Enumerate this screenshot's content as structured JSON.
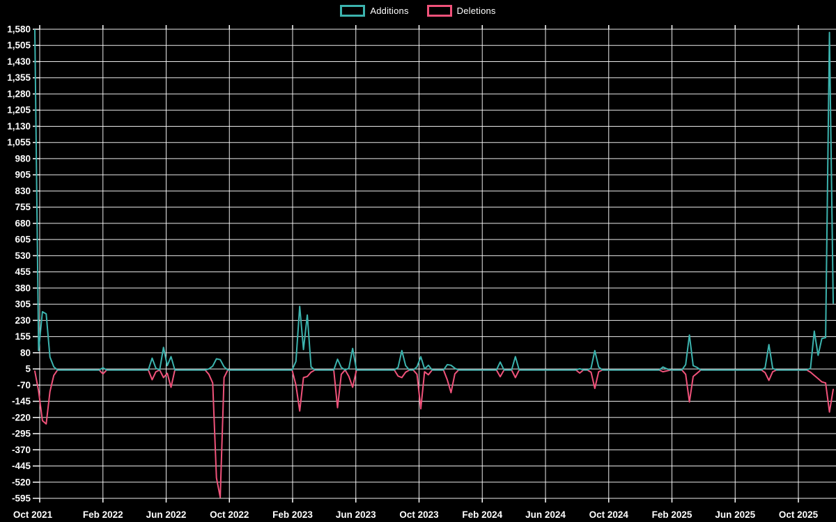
{
  "legend": {
    "additions_label": "Additions",
    "deletions_label": "Deletions"
  },
  "colors": {
    "background": "#000000",
    "grid": "#ffffff",
    "text": "#ffffff",
    "additions": "#3cb3ae",
    "deletions": "#f0527a"
  },
  "chart_data": {
    "type": "line",
    "title": "",
    "xlabel": "",
    "ylabel": "",
    "legend_position": "top-center",
    "grid": true,
    "x_axis": {
      "tick_labels": [
        "Oct 2021",
        "Feb 2022",
        "Jun 2022",
        "Oct 2022",
        "Feb 2023",
        "Jun 2023",
        "Oct 2023",
        "Feb 2024",
        "Jun 2024",
        "Oct 2024",
        "Feb 2025",
        "Jun 2025",
        "Oct 2025"
      ],
      "unit": "weeks",
      "total_weeks": 212
    },
    "y_axis": {
      "min": -595,
      "max": 1580,
      "tick_step": 75,
      "tick_labels": [
        "1,580",
        "1,505",
        "1,430",
        "1,355",
        "1,280",
        "1,205",
        "1,130",
        "1,055",
        "980",
        "905",
        "830",
        "755",
        "680",
        "605",
        "530",
        "455",
        "380",
        "305",
        "230",
        "155",
        "80",
        "5",
        "-70",
        "-145",
        "-220",
        "-295",
        "-370",
        "-445",
        "-520",
        "-595"
      ]
    },
    "series": [
      {
        "name": "Additions",
        "color": "#3cb3ae",
        "baseline": 0
      },
      {
        "name": "Deletions",
        "color": "#f0527a",
        "baseline": 0
      }
    ],
    "sparse_points_note": "Each entry is [week_index, additions, deletions]; weeks not listed are [0, 0] (flat baseline). Week 0 = Oct 2021, last week = Oct 2025.",
    "sparse_points": [
      [
        0,
        1577,
        -5
      ],
      [
        1,
        90,
        -98
      ],
      [
        2,
        270,
        -235
      ],
      [
        3,
        260,
        -250
      ],
      [
        4,
        60,
        -100
      ],
      [
        5,
        15,
        -25
      ],
      [
        18,
        10,
        -18
      ],
      [
        31,
        55,
        -45
      ],
      [
        32,
        8,
        -8
      ],
      [
        34,
        105,
        -35
      ],
      [
        35,
        20,
        -15
      ],
      [
        36,
        62,
        -80
      ],
      [
        46,
        5,
        -20
      ],
      [
        47,
        18,
        -60
      ],
      [
        48,
        52,
        -500
      ],
      [
        49,
        48,
        -590
      ],
      [
        50,
        15,
        -35
      ],
      [
        69,
        40,
        -70
      ],
      [
        70,
        295,
        -190
      ],
      [
        71,
        95,
        -35
      ],
      [
        72,
        255,
        -30
      ],
      [
        73,
        15,
        -10
      ],
      [
        80,
        50,
        -175
      ],
      [
        81,
        12,
        -20
      ],
      [
        83,
        8,
        -30
      ],
      [
        84,
        100,
        -80
      ],
      [
        96,
        12,
        -28
      ],
      [
        97,
        90,
        -35
      ],
      [
        98,
        20,
        -10
      ],
      [
        101,
        15,
        -20
      ],
      [
        102,
        62,
        -180
      ],
      [
        103,
        5,
        -8
      ],
      [
        104,
        22,
        -22
      ],
      [
        109,
        25,
        -45
      ],
      [
        110,
        22,
        -105
      ],
      [
        111,
        8,
        -18
      ],
      [
        123,
        37,
        -31
      ],
      [
        127,
        62,
        -35
      ],
      [
        144,
        6,
        -14
      ],
      [
        147,
        8,
        -10
      ],
      [
        148,
        90,
        -85
      ],
      [
        149,
        14,
        -8
      ],
      [
        166,
        14,
        -8
      ],
      [
        167,
        6,
        -4
      ],
      [
        172,
        25,
        -20
      ],
      [
        173,
        162,
        -148
      ],
      [
        174,
        20,
        -30
      ],
      [
        175,
        12,
        -15
      ],
      [
        193,
        10,
        -12
      ],
      [
        194,
        118,
        -48
      ],
      [
        195,
        8,
        -8
      ],
      [
        205,
        8,
        -10
      ],
      [
        206,
        180,
        -25
      ],
      [
        207,
        68,
        -40
      ],
      [
        208,
        146,
        -55
      ],
      [
        209,
        150,
        -60
      ],
      [
        210,
        1565,
        -195
      ],
      [
        211,
        310,
        -90
      ]
    ]
  }
}
